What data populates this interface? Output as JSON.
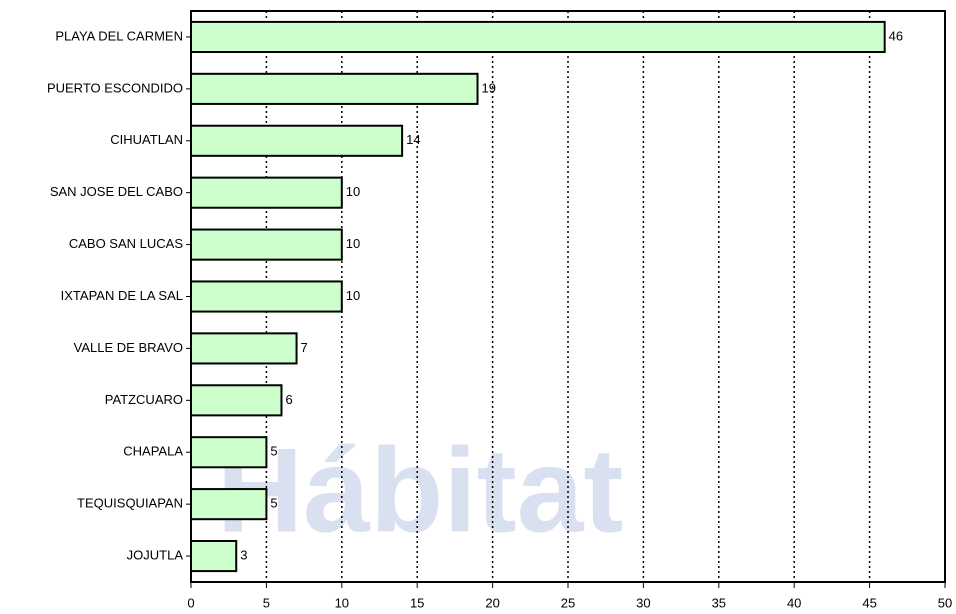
{
  "chart_data": {
    "type": "bar",
    "orientation": "horizontal",
    "watermark": "Hábitat",
    "categories": [
      "PLAYA DEL CARMEN",
      "PUERTO ESCONDIDO",
      "CIHUATLAN",
      "SAN JOSE DEL CABO",
      "CABO SAN LUCAS",
      "IXTAPAN DE LA SAL",
      "VALLE DE BRAVO",
      "PATZCUARO",
      "CHAPALA",
      "TEQUISQUIAPAN",
      "JOJUTLA"
    ],
    "values": [
      46,
      19,
      14,
      10,
      10,
      10,
      7,
      6,
      5,
      5,
      3
    ],
    "color": "#ccffcc",
    "xlim": [
      0,
      50
    ],
    "xticks": [
      0,
      5,
      10,
      15,
      20,
      25,
      30,
      35,
      40,
      45,
      50
    ],
    "grid": true
  }
}
